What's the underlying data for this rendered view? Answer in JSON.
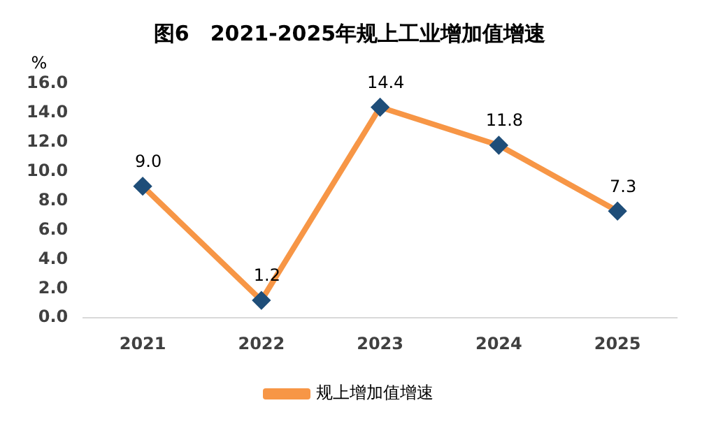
{
  "chart_data": {
    "type": "line",
    "title": "图6　2021-2025年规上工业增加值增速",
    "ylabel": "%",
    "categories": [
      "2021",
      "2022",
      "2023",
      "2024",
      "2025"
    ],
    "series": [
      {
        "name": "规上增加值增速",
        "color": "#f79646",
        "values": [
          9.0,
          1.2,
          14.4,
          11.8,
          7.3
        ],
        "value_labels": [
          "9.0",
          "1.2",
          "14.4",
          "11.8",
          "7.3"
        ]
      }
    ],
    "ylim": [
      0,
      16
    ],
    "yticks": [
      {
        "value": 0,
        "label": "0.0"
      },
      {
        "value": 2,
        "label": "2.0"
      },
      {
        "value": 4,
        "label": "4.0"
      },
      {
        "value": 6,
        "label": "6.0"
      },
      {
        "value": 8,
        "label": "8.0"
      },
      {
        "value": 10,
        "label": "10.0"
      },
      {
        "value": 12,
        "label": "12.0"
      },
      {
        "value": 14,
        "label": "14.0"
      },
      {
        "value": 16,
        "label": "16.0"
      }
    ],
    "grid": false,
    "legend": "bottom",
    "marker": "diamond",
    "line_style": "solid"
  }
}
